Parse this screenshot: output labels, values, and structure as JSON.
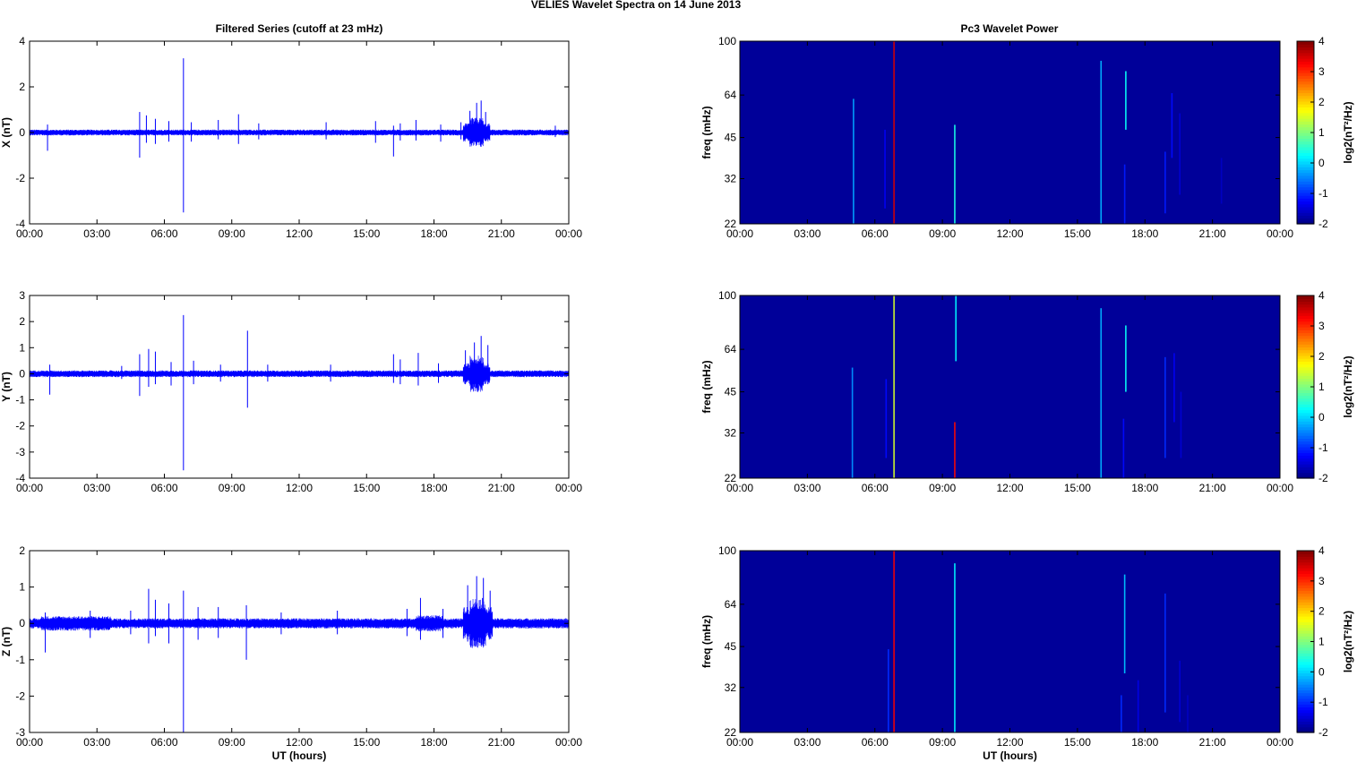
{
  "figure": {
    "title": "VELIES Wavelet Spectra on 14 June     2013"
  },
  "left_column_title": "Filtered Series (cutoff at 23 mHz)",
  "right_column_title": "Pc3 Wavelet Power",
  "x_tick_labels": [
    "00:00",
    "03:00",
    "06:00",
    "09:00",
    "12:00",
    "15:00",
    "18:00",
    "21:00",
    "00:00"
  ],
  "x_axis_label": "UT (hours)",
  "colors": {
    "trace": "#0000ff",
    "background_power": "#00008f"
  },
  "chart_data": [
    {
      "type": "line",
      "name": "filtered-x",
      "ylabel": "X (nT)",
      "xlim": [
        0,
        24
      ],
      "ylim": [
        -4,
        4
      ],
      "yticks": [
        -4,
        -2,
        0,
        2,
        4
      ],
      "band": {
        "base": 0.1,
        "segments": [
          [
            0,
            24,
            0.13
          ],
          [
            19.3,
            20.5,
            0.4
          ],
          [
            19.6,
            20.2,
            0.65
          ]
        ]
      },
      "spikes": [
        [
          0.8,
          0.35,
          -0.8
        ],
        [
          4.9,
          0.9,
          -1.1
        ],
        [
          5.2,
          0.75,
          -0.45
        ],
        [
          5.6,
          0.6,
          -0.5
        ],
        [
          6.2,
          0.5,
          -0.4
        ],
        [
          6.85,
          3.25,
          -3.5
        ],
        [
          7.2,
          0.45,
          -0.4
        ],
        [
          8.4,
          0.55,
          -0.3
        ],
        [
          9.3,
          0.8,
          -0.5
        ],
        [
          10.2,
          0.4,
          -0.3
        ],
        [
          13.2,
          0.45,
          -0.3
        ],
        [
          15.4,
          0.5,
          -0.45
        ],
        [
          16.2,
          0.3,
          -1.05
        ],
        [
          16.5,
          0.4,
          -0.35
        ],
        [
          17.2,
          0.55,
          -0.35
        ],
        [
          18.3,
          0.35,
          -0.4
        ],
        [
          19.2,
          0.45,
          -0.3
        ],
        [
          19.6,
          0.95,
          -0.5
        ],
        [
          19.9,
          1.3,
          -0.55
        ],
        [
          20.1,
          1.4,
          -0.45
        ],
        [
          20.3,
          0.9,
          -0.35
        ],
        [
          23.4,
          0.3,
          -0.2
        ]
      ]
    },
    {
      "type": "line",
      "name": "filtered-y",
      "ylabel": "Y (nT)",
      "xlim": [
        0,
        24
      ],
      "ylim": [
        -4,
        3
      ],
      "yticks": [
        -4,
        -3,
        -2,
        -1,
        0,
        1,
        2,
        3
      ],
      "band": {
        "base": 0.1,
        "segments": [
          [
            0,
            24,
            0.13
          ],
          [
            19.3,
            20.5,
            0.4
          ],
          [
            19.6,
            20.2,
            0.7
          ]
        ]
      },
      "spikes": [
        [
          0.9,
          0.35,
          -0.8
        ],
        [
          4.1,
          0.3,
          -0.2
        ],
        [
          4.9,
          0.75,
          -0.85
        ],
        [
          5.3,
          0.95,
          -0.5
        ],
        [
          5.6,
          0.85,
          -0.4
        ],
        [
          6.3,
          0.45,
          -0.45
        ],
        [
          6.85,
          2.25,
          -3.7
        ],
        [
          7.3,
          0.5,
          -0.4
        ],
        [
          8.5,
          0.35,
          -0.3
        ],
        [
          9.7,
          1.65,
          -1.3
        ],
        [
          10.6,
          0.35,
          -0.3
        ],
        [
          13.4,
          0.35,
          -0.3
        ],
        [
          16.2,
          0.75,
          -0.35
        ],
        [
          16.5,
          0.55,
          -0.4
        ],
        [
          17.3,
          0.8,
          -0.45
        ],
        [
          18.2,
          0.4,
          -0.35
        ],
        [
          19.4,
          0.9,
          -0.4
        ],
        [
          19.8,
          1.2,
          -0.5
        ],
        [
          20.1,
          1.45,
          -0.55
        ],
        [
          20.4,
          1.1,
          -0.4
        ]
      ]
    },
    {
      "type": "line",
      "name": "filtered-z",
      "ylabel": "Z (nT)",
      "xlim": [
        0,
        24
      ],
      "ylim": [
        -3,
        2
      ],
      "yticks": [
        -3,
        -2,
        -1,
        0,
        1,
        2
      ],
      "band": {
        "base": 0.13,
        "segments": [
          [
            0,
            24,
            0.14
          ],
          [
            0.5,
            3.6,
            0.2
          ],
          [
            17.2,
            18.4,
            0.22
          ],
          [
            19.3,
            20.6,
            0.45
          ],
          [
            19.6,
            20.3,
            0.7
          ]
        ]
      },
      "spikes": [
        [
          0.7,
          0.3,
          -0.8
        ],
        [
          2.7,
          0.35,
          -0.4
        ],
        [
          4.5,
          0.35,
          -0.3
        ],
        [
          5.3,
          0.95,
          -0.55
        ],
        [
          5.6,
          0.65,
          -0.35
        ],
        [
          6.2,
          0.55,
          -0.55
        ],
        [
          6.85,
          0.9,
          -3.0
        ],
        [
          7.5,
          0.45,
          -0.45
        ],
        [
          8.4,
          0.45,
          -0.4
        ],
        [
          9.65,
          0.5,
          -1.0
        ],
        [
          11.2,
          0.3,
          -0.3
        ],
        [
          13.7,
          0.35,
          -0.3
        ],
        [
          16.8,
          0.4,
          -0.35
        ],
        [
          17.4,
          0.7,
          -0.45
        ],
        [
          18.4,
          0.4,
          -0.4
        ],
        [
          19.5,
          1.05,
          -0.5
        ],
        [
          19.9,
          1.3,
          -0.55
        ],
        [
          20.2,
          1.25,
          -0.45
        ],
        [
          20.5,
          0.9,
          -0.4
        ]
      ]
    },
    {
      "type": "heatmap",
      "name": "pc3-power-1",
      "ylabel": "freq (mHz)",
      "colorbar_label": "log2(nT²/Hz)",
      "xlim": [
        0,
        24
      ],
      "ylim": [
        22,
        100
      ],
      "yscale": "log",
      "yticks": [
        22,
        32,
        45,
        64,
        100
      ],
      "clim": [
        -2,
        4
      ],
      "cticks": [
        -2,
        -1,
        0,
        1,
        2,
        3,
        4
      ],
      "background_value": -1.85,
      "streaks": [
        [
          5.05,
          22,
          62,
          -0.3
        ],
        [
          6.45,
          25,
          48,
          -1.3
        ],
        [
          6.85,
          22,
          100,
          3.5
        ],
        [
          9.55,
          22,
          50,
          0.4
        ],
        [
          16.05,
          22,
          85,
          -0.2
        ],
        [
          17.1,
          22,
          36,
          -1.1
        ],
        [
          17.15,
          48,
          78,
          0.3
        ],
        [
          18.9,
          24,
          40,
          -1.1
        ],
        [
          19.2,
          38,
          65,
          -1.2
        ],
        [
          19.55,
          28,
          55,
          -1.5
        ],
        [
          21.4,
          26,
          38,
          -1.6
        ]
      ]
    },
    {
      "type": "heatmap",
      "name": "pc3-power-2",
      "ylabel": "freq (mHz)",
      "colorbar_label": "log2(nT²/Hz)",
      "xlim": [
        0,
        24
      ],
      "ylim": [
        22,
        100
      ],
      "yscale": "log",
      "yticks": [
        22,
        32,
        45,
        64,
        100
      ],
      "clim": [
        -2,
        4
      ],
      "cticks": [
        -2,
        -1,
        0,
        1,
        2,
        3,
        4
      ],
      "background_value": -1.85,
      "streaks": [
        [
          5.0,
          22,
          55,
          -0.4
        ],
        [
          6.5,
          26,
          50,
          -1.2
        ],
        [
          6.85,
          22,
          100,
          1.5
        ],
        [
          9.55,
          22,
          35,
          3.2
        ],
        [
          9.6,
          58,
          100,
          0.2
        ],
        [
          16.05,
          22,
          90,
          -0.2
        ],
        [
          17.05,
          22,
          36,
          -1.2
        ],
        [
          17.15,
          45,
          78,
          0.3
        ],
        [
          18.9,
          26,
          60,
          -1.0
        ],
        [
          19.3,
          35,
          62,
          -1.3
        ],
        [
          19.6,
          26,
          45,
          -1.5
        ]
      ]
    },
    {
      "type": "heatmap",
      "name": "pc3-power-3",
      "ylabel": "freq (mHz)",
      "colorbar_label": "log2(nT²/Hz)",
      "xlim": [
        0,
        24
      ],
      "ylim": [
        22,
        100
      ],
      "yscale": "log",
      "yticks": [
        22,
        32,
        45,
        64,
        100
      ],
      "clim": [
        -2,
        4
      ],
      "cticks": [
        -2,
        -1,
        0,
        1,
        2,
        3,
        4
      ],
      "background_value": -1.85,
      "streaks": [
        [
          6.6,
          22,
          44,
          -1.0
        ],
        [
          6.85,
          22,
          100,
          3.3
        ],
        [
          9.55,
          22,
          90,
          0.2
        ],
        [
          16.95,
          22,
          30,
          -1.0
        ],
        [
          17.1,
          36,
          82,
          -0.1
        ],
        [
          17.7,
          22,
          34,
          -1.4
        ],
        [
          18.9,
          26,
          70,
          -1.0
        ],
        [
          19.55,
          24,
          40,
          -1.5
        ],
        [
          19.9,
          22,
          30,
          -1.6
        ]
      ]
    }
  ]
}
